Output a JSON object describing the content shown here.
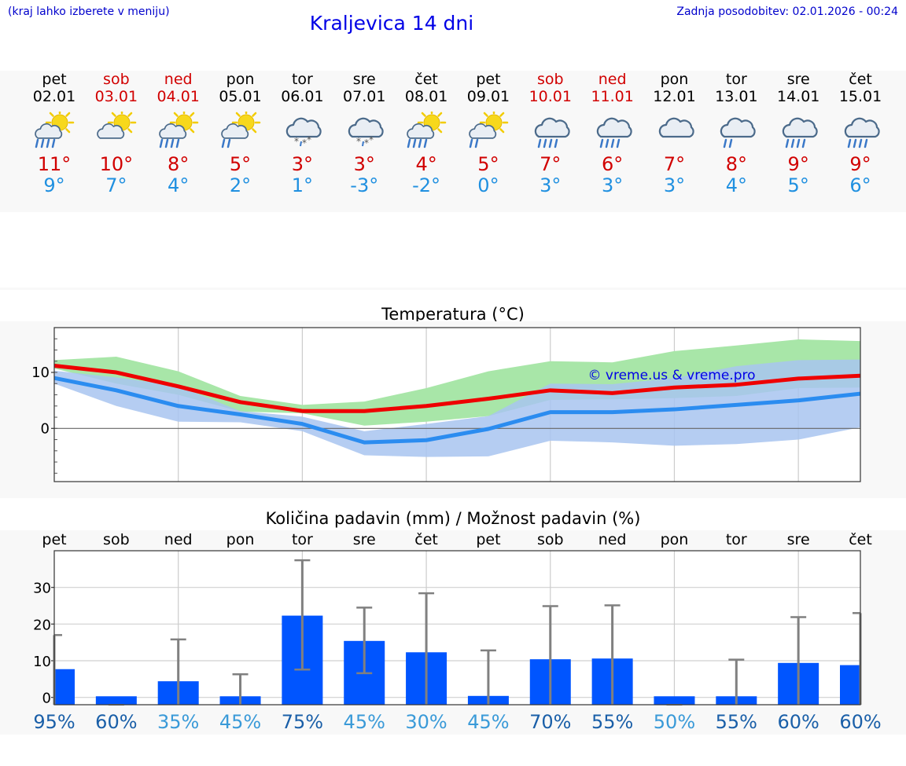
{
  "header": {
    "hint": "(kraj lahko izberete v meniju)",
    "title": "Kraljevica 14 dni",
    "updated": "Zadnja posodobitev: 02.01.2026 - 00:24"
  },
  "days": [
    {
      "name": "pet",
      "date": "02.01",
      "weekend": false,
      "icon": "sun-cloud-rain-icon",
      "max": "11°",
      "min": "9°"
    },
    {
      "name": "sob",
      "date": "03.01",
      "weekend": true,
      "icon": "sun-cloud-icon",
      "max": "10°",
      "min": "7°"
    },
    {
      "name": "ned",
      "date": "04.01",
      "weekend": true,
      "icon": "sun-cloud-rain-icon",
      "max": "8°",
      "min": "4°"
    },
    {
      "name": "pon",
      "date": "05.01",
      "weekend": false,
      "icon": "sun-cloud-light-rain-icon",
      "max": "5°",
      "min": "2°"
    },
    {
      "name": "tor",
      "date": "06.01",
      "weekend": false,
      "icon": "cloud-snow-icon",
      "max": "3°",
      "min": "1°"
    },
    {
      "name": "sre",
      "date": "07.01",
      "weekend": false,
      "icon": "cloud-snow-icon",
      "max": "3°",
      "min": "-3°"
    },
    {
      "name": "čet",
      "date": "08.01",
      "weekend": false,
      "icon": "sun-cloud-rain-icon",
      "max": "4°",
      "min": "-2°"
    },
    {
      "name": "pet",
      "date": "09.01",
      "weekend": false,
      "icon": "sun-cloud-light-rain-icon",
      "max": "5°",
      "min": "0°"
    },
    {
      "name": "sob",
      "date": "10.01",
      "weekend": true,
      "icon": "cloud-rain-icon",
      "max": "7°",
      "min": "3°"
    },
    {
      "name": "ned",
      "date": "11.01",
      "weekend": true,
      "icon": "cloud-rain-icon",
      "max": "6°",
      "min": "3°"
    },
    {
      "name": "pon",
      "date": "12.01",
      "weekend": false,
      "icon": "cloud-icon",
      "max": "7°",
      "min": "3°"
    },
    {
      "name": "tor",
      "date": "13.01",
      "weekend": false,
      "icon": "cloud-light-rain-icon",
      "max": "8°",
      "min": "4°"
    },
    {
      "name": "sre",
      "date": "14.01",
      "weekend": false,
      "icon": "cloud-rain-icon",
      "max": "9°",
      "min": "5°"
    },
    {
      "name": "čet",
      "date": "15.01",
      "weekend": false,
      "icon": "cloud-rain-icon",
      "max": "9°",
      "min": "6°"
    }
  ],
  "colors": {
    "max_line": "#ee0000",
    "min_line": "#2b8cf0",
    "max_band": "#a8e6a8",
    "min_band": "#a8c4f0",
    "overlap_band": "#80c8a8",
    "bar": "#0055ff",
    "errorbar": "#808080"
  },
  "chart_data": [
    {
      "type": "line",
      "title": "Temperatura (°C)",
      "watermark": "© vreme.us & vreme.pro",
      "ylim": [
        -9.5,
        18
      ],
      "yticks": [
        0,
        10
      ],
      "x": [
        0,
        1,
        2,
        3,
        4,
        5,
        6,
        7,
        8,
        9,
        10,
        11,
        12,
        13
      ],
      "series": [
        {
          "name": "max",
          "values": [
            11.2,
            10,
            7.5,
            4.7,
            3.1,
            3.1,
            4,
            5.3,
            6.8,
            6.3,
            7.3,
            7.8,
            8.9,
            9.4
          ]
        },
        {
          "name": "min",
          "values": [
            9,
            6.8,
            4,
            2.5,
            0.8,
            -2.5,
            -2.1,
            -0.1,
            2.9,
            2.9,
            3.4,
            4.2,
            5,
            6.2
          ]
        }
      ],
      "bands": [
        {
          "name": "max_range",
          "low": [
            10.7,
            8,
            6,
            3,
            2.7,
            0.5,
            1.2,
            2.2,
            5.1,
            5.2,
            5.4,
            5.8,
            7.2,
            7.3
          ],
          "high": [
            12.2,
            12.8,
            10.2,
            5.8,
            4.2,
            4.8,
            7.2,
            10.2,
            12,
            11.8,
            13.8,
            14.8,
            15.9,
            15.6
          ]
        },
        {
          "name": "min_range",
          "low": [
            8,
            4,
            1.2,
            1.1,
            -0.5,
            -4.8,
            -5.1,
            -5,
            -2.2,
            -2.5,
            -3.1,
            -2.8,
            -2,
            0.2
          ],
          "high": [
            10.3,
            9.1,
            7.6,
            3.1,
            2.1,
            -0.5,
            0.8,
            2.2,
            8,
            7.9,
            9,
            11.1,
            12.2,
            12.3
          ]
        }
      ]
    },
    {
      "type": "bar",
      "title": "Količina padavin (mm) / Možnost padavin (%)",
      "ylim": [
        -2,
        40
      ],
      "yticks": [
        0,
        10,
        20,
        30
      ],
      "categories": [
        "pet",
        "sob",
        "ned",
        "pon",
        "tor",
        "sre",
        "čet",
        "pet",
        "sob",
        "ned",
        "pon",
        "tor",
        "sre",
        "čet"
      ],
      "values": [
        7.7,
        0,
        4.4,
        0.1,
        22.3,
        15.4,
        12.3,
        0.4,
        10.4,
        10.6,
        0,
        0.3,
        9.4,
        8.8
      ],
      "err_low": [
        0,
        0,
        0,
        0,
        7.6,
        6.6,
        0,
        0,
        0,
        0,
        0,
        0,
        0,
        0
      ],
      "err_high": [
        17,
        0,
        15.8,
        6.3,
        37.4,
        24.5,
        28.4,
        12.8,
        24.9,
        25.1,
        0,
        10.3,
        21.9,
        23
      ],
      "probability": [
        "95%",
        "60%",
        "35%",
        "45%",
        "75%",
        "45%",
        "30%",
        "45%",
        "70%",
        "55%",
        "50%",
        "55%",
        "60%",
        "60%"
      ],
      "probability_colors": [
        "#1a5fa8",
        "#1a5fa8",
        "#3a9ad8",
        "#3a9ad8",
        "#1a5fa8",
        "#3a9ad8",
        "#3a9ad8",
        "#3a9ad8",
        "#1a5fa8",
        "#1a5fa8",
        "#3a9ad8",
        "#1a5fa8",
        "#1a5fa8",
        "#1a5fa8"
      ]
    }
  ]
}
